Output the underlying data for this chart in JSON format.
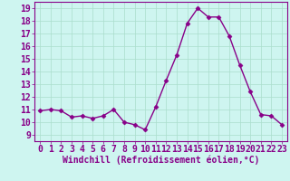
{
  "x": [
    0,
    1,
    2,
    3,
    4,
    5,
    6,
    7,
    8,
    9,
    10,
    11,
    12,
    13,
    14,
    15,
    16,
    17,
    18,
    19,
    20,
    21,
    22,
    23
  ],
  "y": [
    10.9,
    11.0,
    10.9,
    10.4,
    10.5,
    10.3,
    10.5,
    11.0,
    10.0,
    9.8,
    9.4,
    11.2,
    13.3,
    15.3,
    17.8,
    19.0,
    18.3,
    18.3,
    16.8,
    14.5,
    12.4,
    10.6,
    10.5,
    9.8
  ],
  "line_color": "#880088",
  "marker": "D",
  "markersize": 2.5,
  "linewidth": 1.0,
  "bg_color": "#cef5f0",
  "grid_color": "#aaddcc",
  "xlabel": "Windchill (Refroidissement éolien,°C)",
  "xlabel_fontsize": 7,
  "xtick_labels": [
    "0",
    "1",
    "2",
    "3",
    "4",
    "5",
    "6",
    "7",
    "8",
    "9",
    "10",
    "11",
    "12",
    "13",
    "14",
    "15",
    "16",
    "17",
    "18",
    "19",
    "20",
    "21",
    "22",
    "23"
  ],
  "ytick_min": 9,
  "ytick_max": 19,
  "ytick_step": 1,
  "tick_fontsize": 7,
  "tick_color": "#880088",
  "spine_color": "#880088"
}
